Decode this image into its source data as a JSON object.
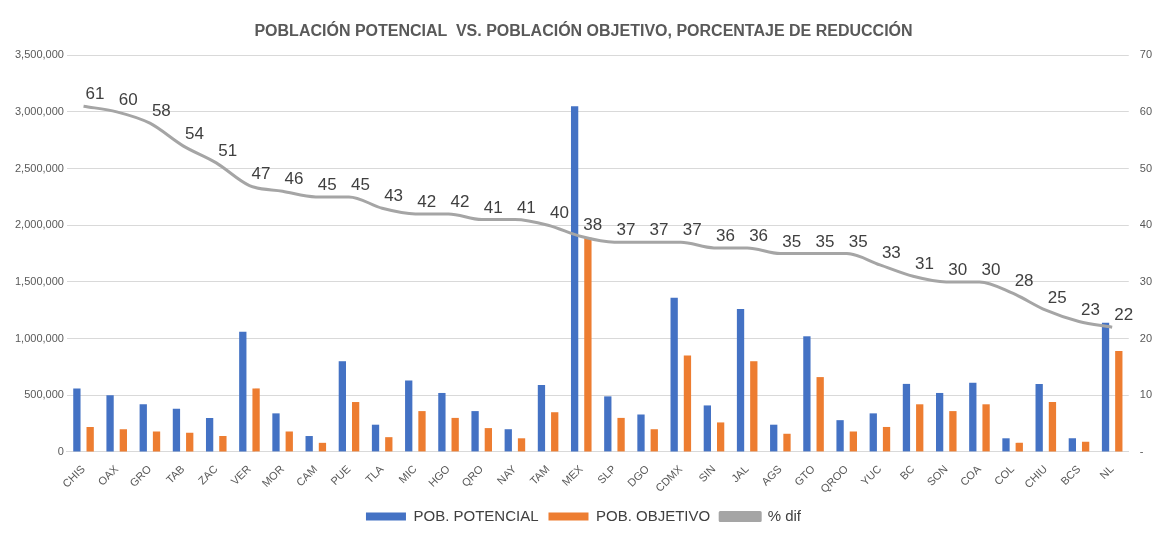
{
  "chart_data": {
    "type": "bar",
    "title": "POBLACIÓN POTENCIAL  VS. POBLACIÓN OBJETIVO, PORCENTAJE DE REDUCCIÓN",
    "categories": [
      "CHIS",
      "OAX",
      "GRO",
      "TAB",
      "ZAC",
      "VER",
      "MOR",
      "CAM",
      "PUE",
      "TLA",
      "MIC",
      "HGO",
      "QRO",
      "NAY",
      "TAM",
      "MEX",
      "SLP",
      "DGO",
      "CDMX",
      "SIN",
      "JAL",
      "AGS",
      "GTO",
      "QROO",
      "YUC",
      "BC",
      "SON",
      "COA",
      "COL",
      "CHIU",
      "BCS",
      "NL"
    ],
    "series": [
      {
        "name": "POB. POTENCIAL",
        "color": "#4472c4",
        "values": [
          560000,
          500000,
          420000,
          380000,
          300000,
          1060000,
          340000,
          140000,
          800000,
          240000,
          630000,
          520000,
          360000,
          200000,
          590000,
          3050000,
          490000,
          330000,
          1360000,
          410000,
          1260000,
          240000,
          1020000,
          280000,
          340000,
          600000,
          520000,
          610000,
          120000,
          600000,
          120000,
          1140000
        ]
      },
      {
        "name": "POB. OBJETIVO",
        "color": "#ed7d31",
        "values": [
          220000,
          200000,
          180000,
          170000,
          140000,
          560000,
          180000,
          80000,
          440000,
          130000,
          360000,
          300000,
          210000,
          120000,
          350000,
          1890000,
          300000,
          200000,
          850000,
          260000,
          800000,
          160000,
          660000,
          180000,
          220000,
          420000,
          360000,
          420000,
          80000,
          440000,
          90000,
          890000
        ]
      },
      {
        "name": "% dif",
        "type": "line",
        "axis": "y2",
        "color": "#a5a5a5",
        "values": [
          61,
          60,
          58,
          54,
          51,
          47,
          46,
          45,
          45,
          43,
          42,
          42,
          41,
          41,
          40,
          38,
          37,
          37,
          37,
          36,
          36,
          35,
          35,
          35,
          33,
          31,
          30,
          30,
          28,
          25,
          23,
          22
        ],
        "value_labels": [
          "61",
          "60",
          "58",
          "54",
          "51",
          "47",
          "46",
          "45",
          "45",
          "43",
          "42",
          "42",
          "41",
          "41",
          "40",
          "38",
          "37",
          "37",
          "37",
          "36",
          "36",
          "35",
          "35",
          "35",
          "33",
          "31",
          "30",
          "30",
          "28",
          "25",
          "23",
          "22"
        ]
      }
    ],
    "ylim": [
      0,
      3500000
    ],
    "yticks": [
      {
        "value": 0,
        "label": "0"
      },
      {
        "value": 500000,
        "label": "500,000"
      },
      {
        "value": 1000000,
        "label": "1,000,000"
      },
      {
        "value": 1500000,
        "label": "1,500,000"
      },
      {
        "value": 2000000,
        "label": "2,000,000"
      },
      {
        "value": 2500000,
        "label": "2,500,000"
      },
      {
        "value": 3000000,
        "label": "3,000,000"
      },
      {
        "value": 3500000,
        "label": "3,500,000"
      }
    ],
    "y2lim": [
      0,
      70
    ],
    "y2ticks": [
      {
        "value": 0,
        "label": "-"
      },
      10,
      20,
      30,
      40,
      50,
      60,
      70
    ],
    "grid": "y",
    "legend": "bottom",
    "marker": "none",
    "line_style": "solid"
  }
}
